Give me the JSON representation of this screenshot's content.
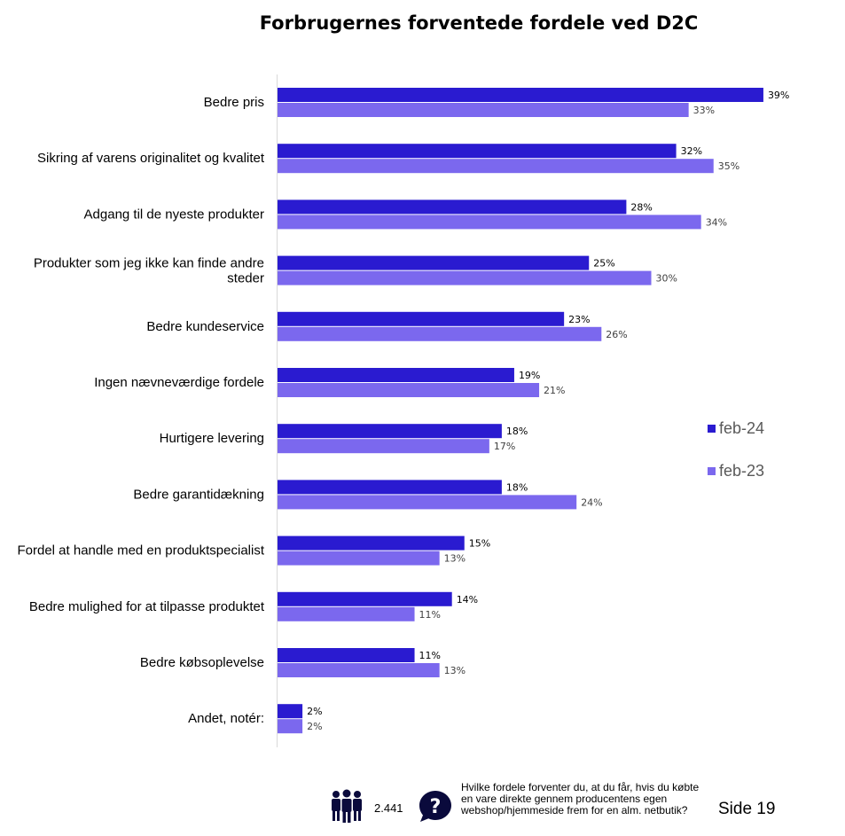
{
  "title": "Forbrugernes forventede fordele ved D2C",
  "chart_data": {
    "type": "bar",
    "orientation": "horizontal",
    "title": "Forbrugernes forventede fordele ved D2C",
    "categories": [
      "Bedre pris",
      "Sikring af varens originalitet og kvalitet",
      "Adgang til de nyeste produkter",
      "Produkter som jeg ikke kan finde andre steder",
      "Bedre kundeservice",
      "Ingen nævneværdige fordele",
      "Hurtigere levering",
      "Bedre garantidækning",
      "Fordel at handle med en produktspecialist",
      "Bedre mulighed for at tilpasse produktet",
      "Bedre købsoplevelse",
      "Andet, notér:"
    ],
    "series": [
      {
        "name": "feb-24",
        "color": "#2a1bd0",
        "values": [
          39,
          32,
          28,
          25,
          23,
          19,
          18,
          18,
          15,
          14,
          11,
          2
        ]
      },
      {
        "name": "feb-23",
        "color": "#7b68ee",
        "values": [
          33,
          35,
          34,
          30,
          26,
          21,
          17,
          24,
          13,
          11,
          13,
          2
        ]
      }
    ],
    "value_suffix": "%",
    "xlim": [
      0,
      40
    ],
    "legend_position": "right"
  },
  "legend": {
    "feb24": "feb-24",
    "feb23": "feb-23",
    "feb24_color": "#2a1bd0",
    "feb23_color": "#7b68ee"
  },
  "footer": {
    "respondents": "2.441",
    "question": "Hvilke fordele forventer du, at du får, hvis du købte en vare direkte gennem producentens egen webshop/hjemmeside frem for en alm. netbutik?",
    "page": "Side 19",
    "respondents_icon": "people-icon",
    "question_icon": "question-bubble-icon"
  }
}
